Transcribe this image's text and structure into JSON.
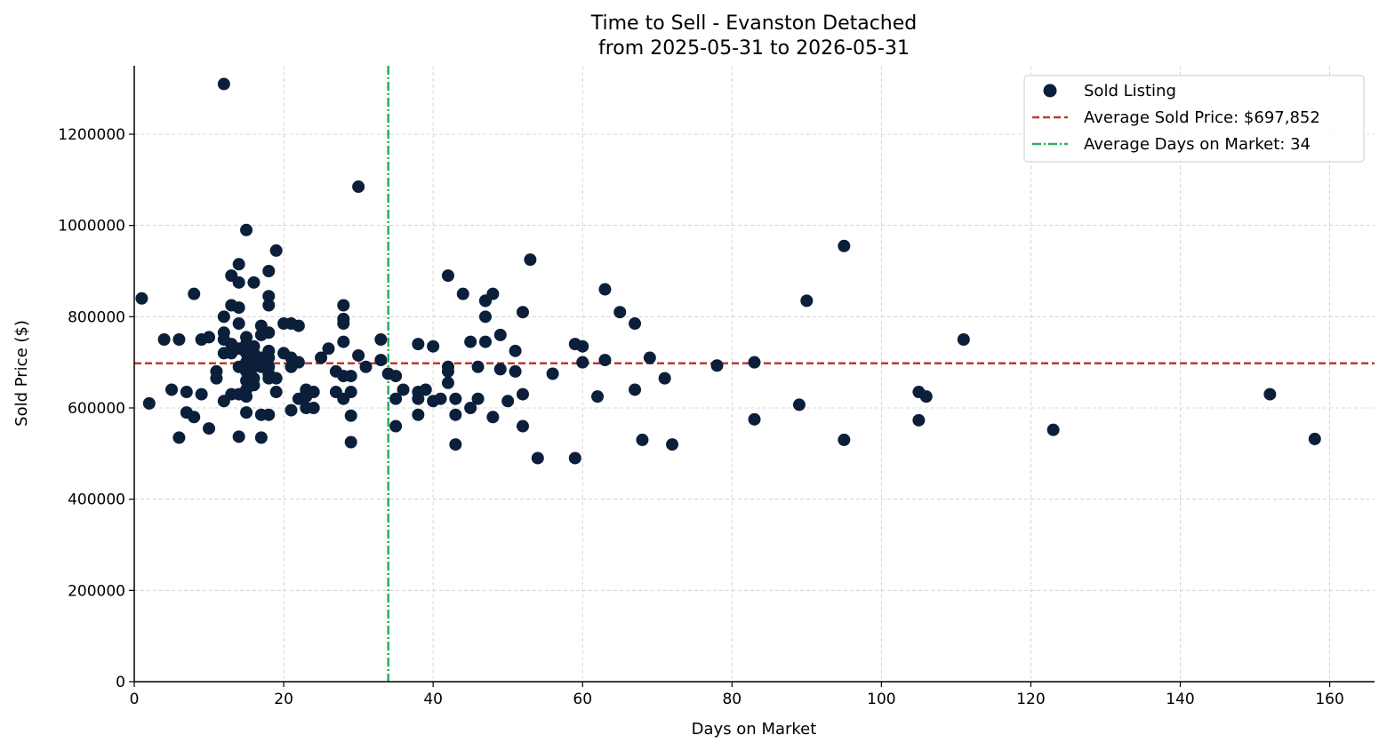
{
  "chart_data": {
    "type": "scatter",
    "title": "Time to Sell - Evanston Detached",
    "subtitle": "from 2025-05-31 to 2026-05-31",
    "xlabel": "Days on Market",
    "ylabel": "Sold Price ($)",
    "xlim": [
      0,
      166
    ],
    "ylim": [
      0,
      1350000
    ],
    "xticks": [
      0,
      20,
      40,
      60,
      80,
      100,
      120,
      140,
      160
    ],
    "yticks": [
      0,
      200000,
      400000,
      600000,
      800000,
      1000000,
      1200000
    ],
    "xtick_labels": [
      "0",
      "20",
      "40",
      "60",
      "80",
      "100",
      "120",
      "140",
      "160"
    ],
    "ytick_labels": [
      "0",
      "200000",
      "400000",
      "600000",
      "800000",
      "1000000",
      "1200000"
    ],
    "grid": true,
    "legend_position": "top-right",
    "colors": {
      "points": "#0b1f3a",
      "avg_price": "#c0392b",
      "avg_days": "#27ae60"
    },
    "series": [
      {
        "name": "Sold Listing",
        "x": [
          1,
          2,
          4,
          5,
          6,
          6,
          7,
          7,
          8,
          8,
          9,
          9,
          10,
          10,
          11,
          11,
          12,
          12,
          12,
          12,
          12,
          12,
          13,
          13,
          13,
          13,
          13,
          14,
          14,
          14,
          14,
          14,
          14,
          14,
          14,
          15,
          15,
          15,
          15,
          15,
          15,
          15,
          15,
          15,
          15,
          16,
          16,
          16,
          16,
          16,
          16,
          16,
          17,
          17,
          17,
          17,
          17,
          17,
          18,
          18,
          18,
          18,
          18,
          18,
          18,
          18,
          18,
          18,
          19,
          19,
          19,
          20,
          20,
          21,
          21,
          21,
          21,
          22,
          22,
          22,
          23,
          23,
          23,
          23,
          24,
          24,
          25,
          26,
          27,
          27,
          28,
          28,
          28,
          28,
          28,
          28,
          29,
          29,
          29,
          29,
          30,
          30,
          31,
          33,
          33,
          34,
          35,
          35,
          35,
          36,
          38,
          38,
          38,
          38,
          39,
          40,
          40,
          41,
          42,
          42,
          42,
          42,
          43,
          43,
          43,
          44,
          45,
          45,
          46,
          46,
          47,
          47,
          47,
          47,
          48,
          48,
          49,
          49,
          50,
          51,
          51,
          52,
          52,
          52,
          53,
          54,
          56,
          59,
          59,
          60,
          60,
          62,
          63,
          63,
          65,
          67,
          67,
          68,
          69,
          71,
          72,
          78,
          83,
          83,
          89,
          90,
          95,
          95,
          105,
          105,
          106,
          111,
          123,
          152,
          158
        ],
        "y": [
          840000,
          610000,
          750000,
          640000,
          750000,
          535000,
          635000,
          590000,
          850000,
          580000,
          750000,
          630000,
          755000,
          555000,
          665000,
          680000,
          1310000,
          800000,
          765000,
          750000,
          720000,
          615000,
          890000,
          825000,
          740000,
          720000,
          630000,
          915000,
          875000,
          820000,
          785000,
          730000,
          690000,
          630000,
          537000,
          990000,
          755000,
          740000,
          720000,
          700000,
          680000,
          660000,
          640000,
          625000,
          590000,
          875000,
          735000,
          720000,
          705000,
          690000,
          665000,
          650000,
          780000,
          760000,
          710000,
          690000,
          585000,
          535000,
          900000,
          845000,
          825000,
          765000,
          725000,
          710000,
          690000,
          675000,
          665000,
          585000,
          945000,
          665000,
          635000,
          785000,
          720000,
          785000,
          710000,
          690000,
          595000,
          700000,
          620000,
          780000,
          640000,
          630000,
          600000,
          625000,
          635000,
          600000,
          710000,
          730000,
          680000,
          635000,
          825000,
          795000,
          785000,
          745000,
          670000,
          620000,
          635000,
          670000,
          583000,
          525000,
          1085000,
          715000,
          690000,
          750000,
          705000,
          675000,
          670000,
          620000,
          560000,
          640000,
          740000,
          635000,
          620000,
          585000,
          640000,
          735000,
          615000,
          620000,
          890000,
          690000,
          680000,
          655000,
          620000,
          585000,
          520000,
          850000,
          745000,
          600000,
          690000,
          620000,
          835000,
          800000,
          745000,
          835000,
          850000,
          580000,
          760000,
          685000,
          615000,
          725000,
          680000,
          810000,
          630000,
          560000,
          925000,
          490000,
          675000,
          740000,
          490000,
          735000,
          700000,
          625000,
          860000,
          705000,
          810000,
          785000,
          640000,
          530000,
          710000,
          665000,
          520000,
          693000,
          700000,
          575000,
          607000,
          835000,
          955000,
          530000,
          635000,
          573000,
          625000,
          750000,
          552000,
          630000,
          532000
        ]
      }
    ],
    "reference_lines": {
      "avg_price": {
        "value": 697852,
        "label": "Average Sold Price: $697,852"
      },
      "avg_days": {
        "value": 34,
        "label": "Average Days on Market: 34"
      }
    },
    "legend": [
      {
        "label": "Sold Listing",
        "icon": "scatter-marker-icon"
      },
      {
        "label": "Average Sold Price: $697,852",
        "icon": "dashed-line-icon"
      },
      {
        "label": "Average Days on Market: 34",
        "icon": "dashdot-line-icon"
      }
    ]
  }
}
